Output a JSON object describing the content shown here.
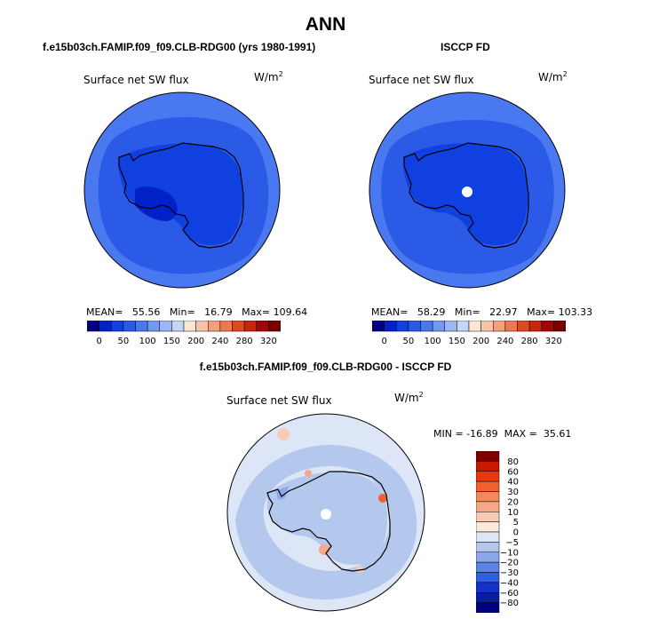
{
  "title": "ANN",
  "panels": {
    "model": {
      "case_title": "f.e15b03ch.FAMIP.f09_f09.CLB-RDG00 (yrs 1980-1991)",
      "variable": "Surface net SW flux",
      "units_base": "W/m",
      "units_exp": "2",
      "stats": {
        "mean_label": "MEAN=",
        "mean": "55.56",
        "min_label": "Min=",
        "min": "16.79",
        "max_label": "Max=",
        "max": "109.64"
      }
    },
    "obs": {
      "case_title": "ISCCP FD",
      "variable": "Surface net SW flux",
      "units_base": "W/m",
      "units_exp": "2",
      "stats": {
        "mean_label": "MEAN=",
        "mean": "58.29",
        "min_label": "Min=",
        "min": "22.97",
        "max_label": "Max=",
        "max": "103.33"
      }
    },
    "diff": {
      "case_title": "f.e15b03ch.FAMIP.f09_f09.CLB-RDG00 - ISCCP FD",
      "variable": "Surface net SW flux",
      "units_base": "W/m",
      "units_exp": "2",
      "stats_text": "MIN = -16.89  MAX =  35.61"
    }
  },
  "chart_data": [
    {
      "type": "heatmap",
      "projection": "south-polar-stereographic",
      "title": "Surface net SW flux",
      "case": "f.e15b03ch.FAMIP.f09_f09.CLB-RDG00 (yrs 1980-1991)",
      "units": "W/m2",
      "mean": 55.56,
      "min": 16.79,
      "max": 109.64,
      "colorbar_ticks": [
        "0",
        "50",
        "100",
        "150",
        "200",
        "240",
        "280",
        "320"
      ],
      "colorbar_levels": [
        0,
        25,
        50,
        75,
        100,
        125,
        150,
        175,
        200,
        220,
        240,
        260,
        280,
        300,
        320
      ],
      "colorbar_colors": [
        "#000080",
        "#0020c8",
        "#1040e0",
        "#2a5ae6",
        "#4a78f0",
        "#7298f2",
        "#9cb6f4",
        "#c6d4f6",
        "#fce4d6",
        "#f7c4a8",
        "#f4a07a",
        "#f07850",
        "#e04a20",
        "#c82410",
        "#a00808",
        "#780000"
      ],
      "colorbar_orientation": "horizontal"
    },
    {
      "type": "heatmap",
      "projection": "south-polar-stereographic",
      "title": "Surface net SW flux",
      "case": "ISCCP FD",
      "units": "W/m2",
      "mean": 58.29,
      "min": 22.97,
      "max": 103.33,
      "colorbar_ticks": [
        "0",
        "50",
        "100",
        "150",
        "200",
        "240",
        "280",
        "320"
      ],
      "colorbar_levels": [
        0,
        25,
        50,
        75,
        100,
        125,
        150,
        175,
        200,
        220,
        240,
        260,
        280,
        300,
        320
      ],
      "colorbar_colors": [
        "#000080",
        "#0020c8",
        "#1040e0",
        "#2a5ae6",
        "#4a78f0",
        "#7298f2",
        "#9cb6f4",
        "#c6d4f6",
        "#fce4d6",
        "#f7c4a8",
        "#f4a07a",
        "#f07850",
        "#e04a20",
        "#c82410",
        "#a00808",
        "#780000"
      ],
      "colorbar_orientation": "horizontal"
    },
    {
      "type": "heatmap",
      "projection": "south-polar-stereographic",
      "title": "Surface net SW flux",
      "case": "f.e15b03ch.FAMIP.f09_f09.CLB-RDG00 - ISCCP FD",
      "units": "W/m2",
      "min": -16.89,
      "max": 35.61,
      "colorbar_ticks": [
        "80",
        "60",
        "40",
        "30",
        "20",
        "10",
        "5",
        "0",
        "−5",
        "−10",
        "−20",
        "−30",
        "−40",
        "−60",
        "−80"
      ],
      "colorbar_colors": [
        "#800000",
        "#c81800",
        "#e83a10",
        "#f06030",
        "#f48858",
        "#f4a888",
        "#f8ccb4",
        "#fde8dc",
        "#dde6f6",
        "#b4c8ee",
        "#8aa8ea",
        "#5a84e6",
        "#3060e0",
        "#1434c8",
        "#0a1ca0",
        "#000080"
      ],
      "colorbar_orientation": "vertical"
    }
  ]
}
